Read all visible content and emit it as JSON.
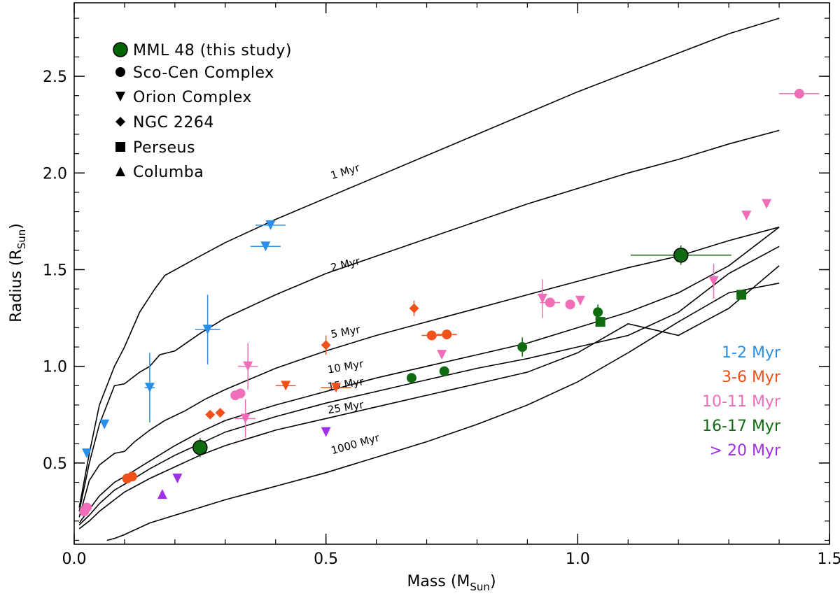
{
  "chart_data": {
    "type": "scatter",
    "xlabel": "Mass (M",
    "xlabel_sub": "Sun",
    "xlabel_close": ")",
    "ylabel": "Radius (R",
    "ylabel_sub": "Sun",
    "ylabel_close": ")",
    "xlim": [
      0.0,
      1.5
    ],
    "ylim": [
      0.08,
      2.88
    ],
    "xticks": [
      {
        "v": 0.0,
        "label": "0.0"
      },
      {
        "v": 0.5,
        "label": "0.5"
      },
      {
        "v": 1.0,
        "label": "1.0"
      },
      {
        "v": 1.5,
        "label": "1.5"
      }
    ],
    "yticks": [
      {
        "v": 0.5,
        "label": "0.5"
      },
      {
        "v": 1.0,
        "label": "1.0"
      },
      {
        "v": 1.5,
        "label": "1.5"
      },
      {
        "v": 2.0,
        "label": "2.0"
      },
      {
        "v": 2.5,
        "label": "2.5"
      }
    ],
    "xminor_step": 0.1,
    "yminor_step": 0.1,
    "legend": [
      {
        "label": "MML 48 (this study)",
        "marker": "big-circle",
        "color": "#006400"
      },
      {
        "label": "Sco-Cen Complex",
        "marker": "circle",
        "color": "#000000"
      },
      {
        "label": "Orion Complex",
        "marker": "triangle-down",
        "color": "#000000"
      },
      {
        "label": "NGC 2264",
        "marker": "diamond",
        "color": "#000000"
      },
      {
        "label": "Perseus",
        "marker": "square",
        "color": "#000000"
      },
      {
        "label": "Columba",
        "marker": "triangle-up",
        "color": "#000000"
      }
    ],
    "age_legend": [
      {
        "label": "1-2 Myr",
        "color": "#2b8fe8"
      },
      {
        "label": "3-6 Myr",
        "color": "#f0501a"
      },
      {
        "label": "10-11 Myr",
        "color": "#f06eb8"
      },
      {
        "label": "16-17 Myr",
        "color": "#0f6a10"
      },
      {
        "label": "> 20 Myr",
        "color": "#a030e8"
      }
    ],
    "isochrones": [
      {
        "name": "1 Myr",
        "label": "1 Myr",
        "label_at": [
          0.54,
          1.99
        ],
        "angle": -17,
        "x": [
          0.01,
          0.03,
          0.05,
          0.08,
          0.1,
          0.13,
          0.16,
          0.18,
          0.25,
          0.3,
          0.4,
          0.5,
          0.6,
          0.7,
          0.8,
          0.9,
          1.0,
          1.1,
          1.2,
          1.3,
          1.4
        ],
        "y": [
          0.27,
          0.55,
          0.8,
          1.0,
          1.1,
          1.28,
          1.4,
          1.47,
          1.57,
          1.64,
          1.76,
          1.87,
          1.98,
          2.09,
          2.2,
          2.31,
          2.42,
          2.52,
          2.62,
          2.72,
          2.8
        ]
      },
      {
        "name": "2 Myr",
        "label": "2 Myr",
        "label_at": [
          0.54,
          1.51
        ],
        "angle": -14,
        "x": [
          0.01,
          0.03,
          0.05,
          0.08,
          0.1,
          0.13,
          0.15,
          0.17,
          0.2,
          0.25,
          0.3,
          0.4,
          0.5,
          0.6,
          0.7,
          0.8,
          0.9,
          1.0,
          1.1,
          1.2,
          1.3,
          1.4
        ],
        "y": [
          0.25,
          0.5,
          0.7,
          0.9,
          0.91,
          0.97,
          1.0,
          1.06,
          1.08,
          1.17,
          1.25,
          1.37,
          1.48,
          1.57,
          1.66,
          1.75,
          1.84,
          1.92,
          2.0,
          2.07,
          2.15,
          2.22
        ]
      },
      {
        "name": "5 Myr",
        "label": "5 Myr",
        "label_at": [
          0.54,
          1.16
        ],
        "angle": -10,
        "x": [
          0.01,
          0.03,
          0.05,
          0.08,
          0.1,
          0.12,
          0.15,
          0.18,
          0.22,
          0.26,
          0.3,
          0.4,
          0.5,
          0.6,
          0.7,
          0.8,
          0.9,
          1.0,
          1.1,
          1.2,
          1.3,
          1.4
        ],
        "y": [
          0.22,
          0.41,
          0.49,
          0.55,
          0.56,
          0.61,
          0.67,
          0.72,
          0.77,
          0.83,
          0.88,
          0.99,
          1.08,
          1.16,
          1.23,
          1.3,
          1.37,
          1.44,
          1.51,
          1.57,
          1.65,
          1.72
        ]
      },
      {
        "name": "10 Myr",
        "label": "10 Myr",
        "label_at": [
          0.54,
          0.98
        ],
        "angle": -10,
        "x": [
          0.01,
          0.03,
          0.05,
          0.08,
          0.1,
          0.15,
          0.2,
          0.25,
          0.3,
          0.4,
          0.5,
          0.6,
          0.7,
          0.8,
          0.9,
          1.0,
          1.1,
          1.2,
          1.3,
          1.4
        ],
        "y": [
          0.19,
          0.26,
          0.33,
          0.4,
          0.43,
          0.51,
          0.59,
          0.66,
          0.72,
          0.8,
          0.87,
          0.94,
          1.0,
          1.06,
          1.12,
          1.2,
          1.28,
          1.38,
          1.52,
          1.72
        ]
      },
      {
        "name": "15 Myr",
        "label": "15 Myr",
        "label_at": [
          0.54,
          0.89
        ],
        "angle": -9,
        "x": [
          0.01,
          0.03,
          0.05,
          0.08,
          0.1,
          0.15,
          0.2,
          0.25,
          0.3,
          0.4,
          0.5,
          0.6,
          0.7,
          0.8,
          0.9,
          1.0,
          1.1,
          1.2,
          1.3,
          1.4
        ],
        "y": [
          0.18,
          0.23,
          0.29,
          0.36,
          0.39,
          0.47,
          0.54,
          0.6,
          0.66,
          0.74,
          0.81,
          0.87,
          0.93,
          0.99,
          1.04,
          1.1,
          1.16,
          1.28,
          1.48,
          1.62
        ]
      },
      {
        "name": "25 Myr",
        "label": "25 Myr",
        "label_at": [
          0.54,
          0.77
        ],
        "angle": -9,
        "x": [
          0.01,
          0.03,
          0.05,
          0.08,
          0.1,
          0.15,
          0.2,
          0.25,
          0.3,
          0.4,
          0.5,
          0.6,
          0.7,
          0.8,
          0.9,
          1.0,
          1.1,
          1.2,
          1.3,
          1.4
        ],
        "y": [
          0.16,
          0.2,
          0.25,
          0.31,
          0.35,
          0.42,
          0.48,
          0.54,
          0.59,
          0.67,
          0.73,
          0.79,
          0.85,
          0.91,
          0.97,
          1.07,
          1.22,
          1.16,
          1.3,
          1.52
        ]
      },
      {
        "name": "1000 Myr",
        "label": "1000 Myr",
        "label_at": [
          0.56,
          0.58
        ],
        "angle": -16,
        "x": [
          0.065,
          0.08,
          0.1,
          0.15,
          0.2,
          0.25,
          0.3,
          0.4,
          0.5,
          0.6,
          0.7,
          0.8,
          0.9,
          1.0,
          1.1,
          1.2,
          1.3,
          1.4
        ],
        "y": [
          0.1,
          0.11,
          0.13,
          0.19,
          0.23,
          0.27,
          0.31,
          0.38,
          0.45,
          0.53,
          0.61,
          0.7,
          0.8,
          0.92,
          1.07,
          1.23,
          1.38,
          1.43
        ]
      }
    ],
    "points": [
      {
        "x": 0.025,
        "y": 0.55,
        "marker": "triangle-down",
        "group": "1-2 Myr"
      },
      {
        "x": 0.06,
        "y": 0.7,
        "marker": "triangle-down",
        "group": "1-2 Myr"
      },
      {
        "x": 0.15,
        "y": 0.89,
        "marker": "triangle-down",
        "group": "1-2 Myr",
        "yerr": 0.18,
        "xerr": 0.01
      },
      {
        "x": 0.265,
        "y": 1.19,
        "marker": "triangle-down",
        "group": "1-2 Myr",
        "yerr": 0.18,
        "xerr": 0.025
      },
      {
        "x": 0.39,
        "y": 1.73,
        "marker": "triangle-down",
        "group": "1-2 Myr",
        "xerr": 0.03
      },
      {
        "x": 0.38,
        "y": 1.62,
        "marker": "triangle-down",
        "group": "1-2 Myr",
        "xerr": 0.03
      },
      {
        "x": 0.105,
        "y": 0.42,
        "marker": "circle",
        "group": "3-6 Myr"
      },
      {
        "x": 0.115,
        "y": 0.43,
        "marker": "circle",
        "group": "3-6 Myr"
      },
      {
        "x": 0.27,
        "y": 0.75,
        "marker": "diamond",
        "group": "3-6 Myr"
      },
      {
        "x": 0.29,
        "y": 0.76,
        "marker": "diamond",
        "group": "3-6 Myr"
      },
      {
        "x": 0.5,
        "y": 1.11,
        "marker": "diamond",
        "group": "3-6 Myr",
        "yerr": 0.05
      },
      {
        "x": 0.675,
        "y": 1.3,
        "marker": "diamond",
        "group": "3-6 Myr",
        "yerr": 0.04
      },
      {
        "x": 0.71,
        "y": 1.16,
        "marker": "circle",
        "group": "3-6 Myr",
        "xerr": 0.02
      },
      {
        "x": 0.74,
        "y": 1.165,
        "marker": "circle",
        "group": "3-6 Myr",
        "xerr": 0.02
      },
      {
        "x": 0.42,
        "y": 0.9,
        "marker": "triangle-down",
        "group": "3-6 Myr",
        "xerr": 0.02
      },
      {
        "x": 0.52,
        "y": 0.89,
        "marker": "triangle-down",
        "group": "3-6 Myr",
        "xerr": 0.03
      },
      {
        "x": 0.02,
        "y": 0.25,
        "marker": "circle",
        "group": "10-11 Myr"
      },
      {
        "x": 0.025,
        "y": 0.27,
        "marker": "circle",
        "group": "10-11 Myr"
      },
      {
        "x": 0.32,
        "y": 0.85,
        "marker": "circle",
        "group": "10-11 Myr"
      },
      {
        "x": 0.33,
        "y": 0.86,
        "marker": "circle",
        "group": "10-11 Myr"
      },
      {
        "x": 0.345,
        "y": 1.0,
        "marker": "triangle-down",
        "group": "10-11 Myr",
        "yerr": 0.12,
        "xerr": 0.02
      },
      {
        "x": 0.34,
        "y": 0.73,
        "marker": "triangle-down",
        "group": "10-11 Myr",
        "yerr": 0.1,
        "xerr": 0.02
      },
      {
        "x": 0.73,
        "y": 1.06,
        "marker": "triangle-down",
        "group": "10-11 Myr"
      },
      {
        "x": 0.93,
        "y": 1.35,
        "marker": "triangle-down",
        "group": "10-11 Myr",
        "yerr": 0.1
      },
      {
        "x": 0.945,
        "y": 1.33,
        "marker": "circle",
        "group": "10-11 Myr",
        "xerr": 0.02
      },
      {
        "x": 0.985,
        "y": 1.32,
        "marker": "circle",
        "group": "10-11 Myr"
      },
      {
        "x": 1.005,
        "y": 1.34,
        "marker": "triangle-down",
        "group": "10-11 Myr"
      },
      {
        "x": 1.27,
        "y": 1.44,
        "marker": "triangle-down",
        "group": "10-11 Myr",
        "yerr": 0.09
      },
      {
        "x": 1.335,
        "y": 1.78,
        "marker": "triangle-down",
        "group": "10-11 Myr"
      },
      {
        "x": 1.375,
        "y": 1.84,
        "marker": "triangle-down",
        "group": "10-11 Myr"
      },
      {
        "x": 1.44,
        "y": 2.41,
        "marker": "circle",
        "group": "10-11 Myr",
        "xerr": 0.04
      },
      {
        "x": 0.67,
        "y": 0.94,
        "marker": "circle",
        "group": "16-17 Myr"
      },
      {
        "x": 0.735,
        "y": 0.975,
        "marker": "circle",
        "group": "16-17 Myr"
      },
      {
        "x": 0.89,
        "y": 1.1,
        "marker": "circle",
        "group": "16-17 Myr",
        "yerr": 0.05
      },
      {
        "x": 1.04,
        "y": 1.28,
        "marker": "circle",
        "group": "16-17 Myr",
        "yerr": 0.04
      },
      {
        "x": 1.045,
        "y": 1.23,
        "marker": "square",
        "group": "16-17 Myr"
      },
      {
        "x": 1.325,
        "y": 1.37,
        "marker": "square",
        "group": "16-17 Myr"
      },
      {
        "x": 0.25,
        "y": 0.58,
        "marker": "big-circle",
        "group": "16-17 Myr",
        "yerr": 0.05
      },
      {
        "x": 1.205,
        "y": 1.575,
        "marker": "big-circle",
        "group": "16-17 Myr",
        "yerr": 0.05,
        "xerr": 0.1
      },
      {
        "x": 0.175,
        "y": 0.34,
        "marker": "triangle-up",
        "group": "> 20 Myr"
      },
      {
        "x": 0.205,
        "y": 0.42,
        "marker": "triangle-down",
        "group": "> 20 Myr"
      },
      {
        "x": 0.5,
        "y": 0.66,
        "marker": "triangle-down",
        "group": "> 20 Myr"
      }
    ]
  }
}
